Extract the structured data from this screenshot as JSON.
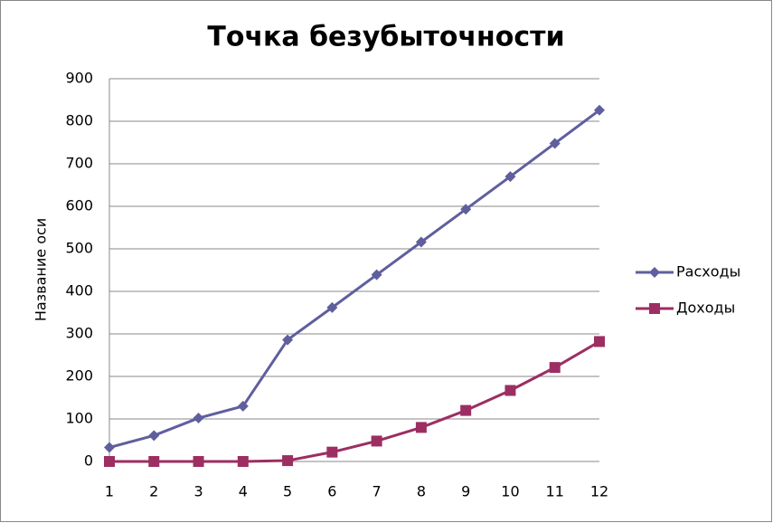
{
  "chart_data": {
    "type": "line",
    "title": "Точка безубыточности",
    "y_label": "Название оси",
    "categories": [
      "1",
      "2",
      "3",
      "4",
      "5",
      "6",
      "7",
      "8",
      "9",
      "10",
      "11",
      "12"
    ],
    "series": [
      {
        "name": "Расходы",
        "color": "#5f5f9e",
        "marker": "diamond",
        "values": [
          33,
          61,
          102,
          130,
          286,
          362,
          439,
          516,
          593,
          670,
          748,
          826
        ]
      },
      {
        "name": "Доходы",
        "color": "#9c2e62",
        "marker": "square",
        "values": [
          0,
          0,
          0,
          0,
          2,
          22,
          48,
          80,
          120,
          167,
          221,
          282
        ]
      }
    ],
    "ylim": [
      0,
      900
    ],
    "yticks": [
      0,
      100,
      200,
      300,
      400,
      500,
      600,
      700,
      800,
      900
    ],
    "grid": true,
    "legend": "right"
  }
}
